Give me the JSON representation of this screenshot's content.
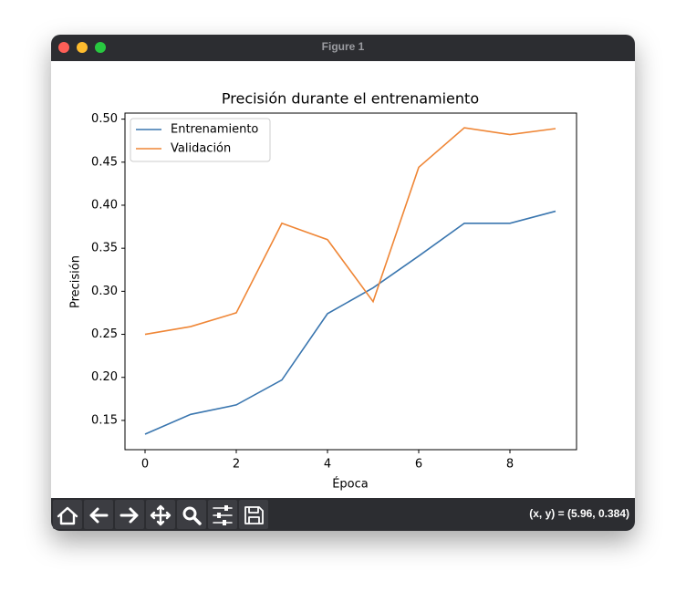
{
  "window": {
    "title": "Figure 1",
    "status": "(x, y) = (5.96, 0.384)"
  },
  "chart_data": {
    "type": "line",
    "title": "Precisión durante el entrenamiento",
    "x_label": "Época",
    "y_label": "Precisión",
    "x": [
      0,
      1,
      2,
      3,
      4,
      5,
      6,
      7,
      8,
      9
    ],
    "series": [
      {
        "name": "Entrenamiento",
        "color": "#3a76af",
        "values": [
          0.134,
          0.157,
          0.168,
          0.197,
          0.274,
          0.304,
          0.341,
          0.379,
          0.379,
          0.393
        ]
      },
      {
        "name": "Validación",
        "color": "#ef8636",
        "values": [
          0.25,
          0.259,
          0.275,
          0.379,
          0.36,
          0.288,
          0.444,
          0.49,
          0.482,
          0.489
        ]
      }
    ],
    "xlim": [
      -0.44,
      9.46
    ],
    "ylim": [
      0.116,
      0.507
    ],
    "xticks": [
      0,
      2,
      4,
      6,
      8
    ],
    "yticks": [
      0.15,
      {
        "value": 0.2,
        "label": "0.20"
      },
      0.25,
      {
        "value": 0.3,
        "label": "0.30"
      },
      0.35,
      {
        "value": 0.4,
        "label": "0.40"
      },
      0.45,
      {
        "value": 0.5,
        "label": "0.50"
      }
    ],
    "legend": "upper left"
  }
}
